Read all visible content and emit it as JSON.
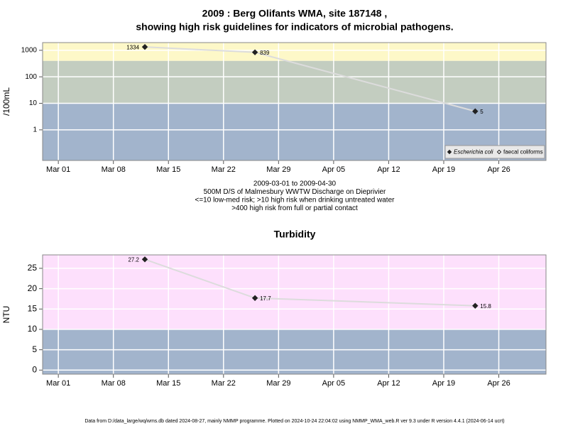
{
  "chart_data": [
    {
      "type": "line",
      "title": "2009 : Berg Olifants WMA, site 187148 ,",
      "subtitle": "showing high risk guidelines for indicators of microbial pathogens.",
      "ylabel": "/100mL",
      "log_y": true,
      "x": [
        "03-12",
        "03-26",
        "04-23"
      ],
      "series": [
        {
          "name": "Escherichia coli",
          "color": "#222222",
          "marker": "filled",
          "values": [
            1334,
            839,
            5
          ]
        },
        {
          "name": "faecal coliforms",
          "color": "#222222",
          "marker": "hollow",
          "values": [
            null,
            null,
            null
          ]
        }
      ],
      "xlim": [
        "02-27",
        "05-02"
      ],
      "xticks": [
        {
          "value": "03-01",
          "label": "Mar 01"
        },
        {
          "value": "03-08",
          "label": "Mar 08"
        },
        {
          "value": "03-15",
          "label": "Mar 15"
        },
        {
          "value": "03-22",
          "label": "Mar 22"
        },
        {
          "value": "03-29",
          "label": "Mar 29"
        },
        {
          "value": "04-05",
          "label": "Apr 05"
        },
        {
          "value": "04-12",
          "label": "Apr 12"
        },
        {
          "value": "04-19",
          "label": "Apr 19"
        },
        {
          "value": "04-26",
          "label": "Apr 26"
        }
      ],
      "ylim": [
        0.07,
        1950
      ],
      "yticks": [
        1,
        10,
        100,
        1000
      ],
      "bands": [
        {
          "range": [
            0.07,
            10
          ],
          "color": "#a2b4cc"
        },
        {
          "range": [
            10,
            400
          ],
          "color": "#c3cdc0"
        },
        {
          "range": [
            400,
            1950
          ],
          "color": "#fdf8c8"
        }
      ],
      "grid": true,
      "legend": "bottom-right",
      "notes": [
        "2009-03-01 to 2009-04-30",
        "500M D/S of Malmesbury WWTW Discharge on Dieprivier",
        "<=10 low-med risk; >10 high risk when drinking untreated water",
        ">400 high risk from full or partial contact"
      ]
    },
    {
      "type": "line",
      "title": "Turbidity",
      "ylabel": "NTU",
      "log_y": false,
      "x": [
        "03-12",
        "03-26",
        "04-23"
      ],
      "series": [
        {
          "name": "Turbidity",
          "color": "#222222",
          "marker": "filled",
          "values": [
            27.2,
            17.7,
            15.8
          ]
        }
      ],
      "xlim": [
        "02-27",
        "05-02"
      ],
      "xticks": [
        {
          "value": "03-01",
          "label": "Mar 01"
        },
        {
          "value": "03-08",
          "label": "Mar 08"
        },
        {
          "value": "03-15",
          "label": "Mar 15"
        },
        {
          "value": "03-22",
          "label": "Mar 22"
        },
        {
          "value": "03-29",
          "label": "Mar 29"
        },
        {
          "value": "04-05",
          "label": "Apr 05"
        },
        {
          "value": "04-12",
          "label": "Apr 12"
        },
        {
          "value": "04-19",
          "label": "Apr 19"
        },
        {
          "value": "04-26",
          "label": "Apr 26"
        }
      ],
      "ylim": [
        -1,
        28.3
      ],
      "yticks": [
        0,
        5,
        10,
        15,
        20,
        25
      ],
      "bands": [
        {
          "range": [
            -1,
            10
          ],
          "color": "#a2b4cc"
        },
        {
          "range": [
            10,
            28.3
          ],
          "color": "#fde0fc"
        }
      ],
      "grid": true
    }
  ],
  "footer": "Data from D:/data_large/wq/wms.db dated 2024-08-27, mainly NMMP programme. Plotted on 2024-10-24 22:04:02 using NMMP_WMA_web.R ver 9.3 under R version 4.4.1 (2024-06-14 ucrt)"
}
